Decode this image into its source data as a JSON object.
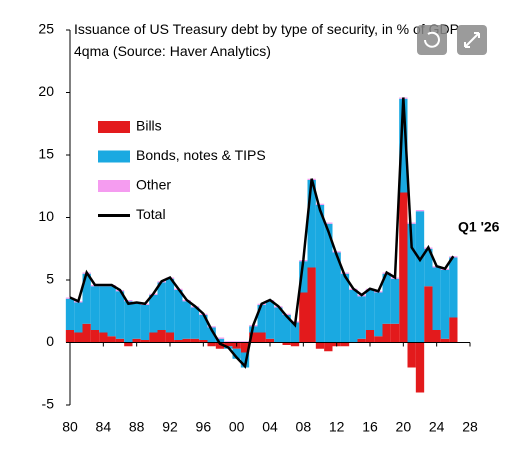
{
  "chart_data": {
    "type": "stacked-bar-line",
    "title": "Issuance of US Treasury debt by type of security, in % of GDP 4qma (Source: Haver Analytics)",
    "annotation": "Q1 '26",
    "x": [
      1980,
      1981,
      1982,
      1983,
      1984,
      1985,
      1986,
      1987,
      1988,
      1989,
      1990,
      1991,
      1992,
      1993,
      1994,
      1995,
      1996,
      1997,
      1998,
      1999,
      2000,
      2001,
      2002,
      2003,
      2004,
      2005,
      2006,
      2007,
      2008,
      2009,
      2010,
      2011,
      2012,
      2013,
      2014,
      2015,
      2016,
      2017,
      2018,
      2019,
      2020,
      2021,
      2022,
      2023,
      2024,
      2025,
      2026
    ],
    "series": [
      {
        "name": "Bills",
        "color": "#e31a1c",
        "values": [
          1.0,
          0.8,
          1.5,
          1.0,
          0.8,
          0.5,
          0.3,
          -0.3,
          0.3,
          0.2,
          0.8,
          1.0,
          0.8,
          0.2,
          0.3,
          0.3,
          0.2,
          -0.3,
          -0.5,
          -0.3,
          -0.5,
          -0.8,
          0.8,
          0.8,
          0.3,
          0.0,
          -0.2,
          -0.3,
          4.0,
          6.0,
          -0.5,
          -0.7,
          -0.3,
          -0.3,
          0.0,
          0.3,
          1.0,
          0.5,
          1.5,
          1.5,
          12.0,
          -2.0,
          -4.0,
          4.5,
          1.0,
          0.3,
          2.0
        ]
      },
      {
        "name": "Bonds, notes & TIPS",
        "color": "#1aa9e1",
        "values": [
          2.5,
          2.4,
          4.0,
          3.5,
          3.7,
          4.0,
          3.8,
          3.3,
          2.8,
          2.8,
          3.0,
          3.8,
          4.3,
          4.0,
          3.0,
          2.5,
          2.0,
          1.2,
          0.3,
          -0.2,
          -0.8,
          -1.2,
          0.5,
          2.2,
          3.0,
          2.8,
          2.2,
          1.6,
          2.5,
          7.0,
          11.0,
          9.5,
          7.2,
          5.5,
          4.2,
          3.4,
          3.2,
          3.5,
          4.0,
          3.6,
          7.5,
          9.5,
          10.5,
          3.0,
          5.0,
          5.5,
          4.8
        ]
      },
      {
        "name": "Other",
        "color": "#f59cf0",
        "values": [
          0.1,
          0.1,
          0.1,
          0.1,
          0.1,
          0.1,
          0.1,
          0.1,
          0.1,
          0.1,
          0.1,
          0.1,
          0.1,
          0.1,
          0.1,
          0.1,
          0.1,
          0.1,
          0.1,
          0.1,
          0.1,
          0.1,
          0.1,
          0.1,
          0.1,
          0.1,
          0.1,
          0.1,
          0.1,
          0.1,
          0.1,
          0.1,
          0.1,
          0.1,
          0.1,
          0.1,
          0.1,
          0.1,
          0.1,
          0.1,
          0.1,
          0.1,
          0.1,
          0.1,
          0.1,
          0.1,
          0.1
        ]
      },
      {
        "name": "Total",
        "color": "#000000",
        "line": true,
        "values": [
          3.6,
          3.3,
          5.6,
          4.6,
          4.6,
          4.6,
          4.2,
          3.1,
          3.2,
          3.1,
          3.9,
          4.9,
          5.2,
          4.3,
          3.4,
          2.9,
          2.3,
          1.0,
          -0.1,
          -0.4,
          -1.2,
          -1.9,
          1.4,
          3.1,
          3.4,
          2.9,
          2.1,
          1.4,
          6.6,
          13.1,
          10.6,
          8.9,
          7.0,
          5.3,
          4.3,
          3.8,
          4.3,
          4.1,
          5.6,
          5.2,
          19.6,
          7.6,
          6.6,
          7.6,
          6.1,
          5.9,
          6.9
        ]
      }
    ],
    "xlim": [
      1980,
      2028
    ],
    "xticks": [
      {
        "value": 1980,
        "label": "80"
      },
      {
        "value": 1984,
        "label": "84"
      },
      {
        "value": 1988,
        "label": "88"
      },
      {
        "value": 1992,
        "label": "92"
      },
      {
        "value": 1996,
        "label": "96"
      },
      {
        "value": 2000,
        "label": "00"
      },
      {
        "value": 2004,
        "label": "04"
      },
      {
        "value": 2008,
        "label": "08"
      },
      {
        "value": 2012,
        "label": "12"
      },
      {
        "value": 2016,
        "label": "16"
      },
      {
        "value": 2020,
        "label": "20"
      },
      {
        "value": 2024,
        "label": "24"
      },
      {
        "value": 2028,
        "label": "28"
      }
    ],
    "ylim": [
      -5,
      25
    ],
    "yticks": [
      25,
      20,
      15,
      10,
      5,
      0,
      -5
    ]
  }
}
